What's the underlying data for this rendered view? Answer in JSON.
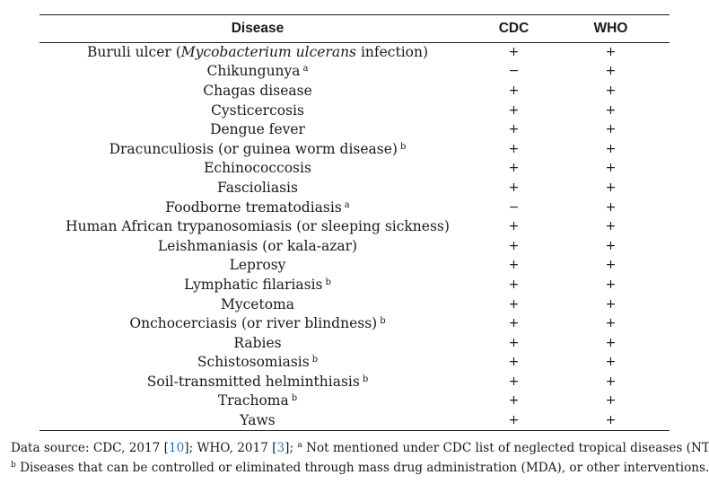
{
  "table": {
    "columns": [
      "Disease",
      "CDC",
      "WHO"
    ],
    "rows": [
      {
        "name": "Buruli ulcer (",
        "name_italic": "Mycobacterium ulcerans",
        "name_after": " infection)",
        "sup": "",
        "cdc": "+",
        "who": "+"
      },
      {
        "name": "Chikungunya",
        "name_italic": "",
        "name_after": "",
        "sup": "a",
        "cdc": "−",
        "who": "+"
      },
      {
        "name": "Chagas disease",
        "name_italic": "",
        "name_after": "",
        "sup": "",
        "cdc": "+",
        "who": "+"
      },
      {
        "name": "Cysticercosis",
        "name_italic": "",
        "name_after": "",
        "sup": "",
        "cdc": "+",
        "who": "+"
      },
      {
        "name": "Dengue fever",
        "name_italic": "",
        "name_after": "",
        "sup": "",
        "cdc": "+",
        "who": "+"
      },
      {
        "name": "Dracunculiosis (or guinea worm disease)",
        "name_italic": "",
        "name_after": "",
        "sup": "b",
        "cdc": "+",
        "who": "+"
      },
      {
        "name": "Echinococcosis",
        "name_italic": "",
        "name_after": "",
        "sup": "",
        "cdc": "+",
        "who": "+"
      },
      {
        "name": "Fascioliasis",
        "name_italic": "",
        "name_after": "",
        "sup": "",
        "cdc": "+",
        "who": "+"
      },
      {
        "name": "Foodborne trematodiasis",
        "name_italic": "",
        "name_after": "",
        "sup": "a",
        "cdc": "−",
        "who": "+"
      },
      {
        "name": "Human African trypanosomiasis (or sleeping sickness)",
        "name_italic": "",
        "name_after": "",
        "sup": "",
        "cdc": "+",
        "who": "+"
      },
      {
        "name": "Leishmaniasis (or kala-azar)",
        "name_italic": "",
        "name_after": "",
        "sup": "",
        "cdc": "+",
        "who": "+"
      },
      {
        "name": "Leprosy",
        "name_italic": "",
        "name_after": "",
        "sup": "",
        "cdc": "+",
        "who": "+"
      },
      {
        "name": "Lymphatic filariasis",
        "name_italic": "",
        "name_after": "",
        "sup": "b",
        "cdc": "+",
        "who": "+"
      },
      {
        "name": "Mycetoma",
        "name_italic": "",
        "name_after": "",
        "sup": "",
        "cdc": "+",
        "who": "+"
      },
      {
        "name": "Onchocerciasis (or river blindness)",
        "name_italic": "",
        "name_after": "",
        "sup": "b",
        "cdc": "+",
        "who": "+"
      },
      {
        "name": "Rabies",
        "name_italic": "",
        "name_after": "",
        "sup": "",
        "cdc": "+",
        "who": "+"
      },
      {
        "name": "Schistosomiasis",
        "name_italic": "",
        "name_after": "",
        "sup": "b",
        "cdc": "+",
        "who": "+"
      },
      {
        "name": "Soil-transmitted helminthiasis",
        "name_italic": "",
        "name_after": "",
        "sup": "b",
        "cdc": "+",
        "who": "+"
      },
      {
        "name": "Trachoma",
        "name_italic": "",
        "name_after": "",
        "sup": "b",
        "cdc": "+",
        "who": "+"
      },
      {
        "name": "Yaws",
        "name_italic": "",
        "name_after": "",
        "sup": "",
        "cdc": "+",
        "who": "+"
      }
    ]
  },
  "caption": {
    "line1": {
      "prefix": "Data source: CDC, 2017 [",
      "ref1": "10",
      "middle": "]; WHO, 2017 [",
      "ref2": "3",
      "after_ref": "]; ",
      "sup": "a",
      "text": " Not mentioned under CDC list of neglected tropical diseases (NTDs);"
    },
    "line2": {
      "sup": "b",
      "text": " Diseases that can be controlled or eliminated through mass drug administration (MDA), or other interventions."
    }
  },
  "colors": {
    "text": "#1a1a1a",
    "reference_link": "#2a6fc0",
    "background": "#ffffff"
  }
}
